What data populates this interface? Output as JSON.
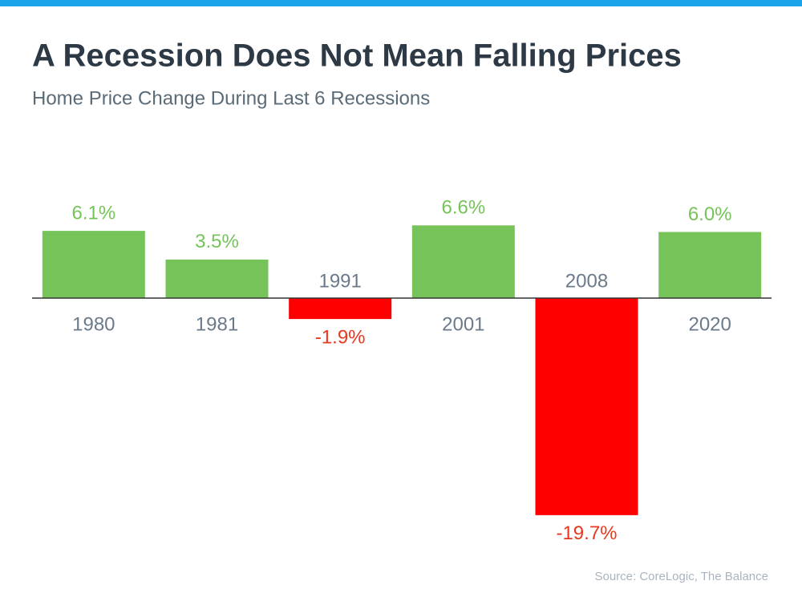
{
  "chart_data": {
    "type": "bar",
    "title": "A Recession Does Not Mean Falling Prices",
    "subtitle": "Home Price Change During Last 6 Recessions",
    "categories": [
      "1980",
      "1981",
      "1991",
      "2001",
      "2008",
      "2020"
    ],
    "values": [
      6.1,
      3.5,
      -1.9,
      6.6,
      -19.7,
      6.0
    ],
    "value_labels": [
      "6.1%",
      "3.5%",
      "-1.9%",
      "6.6%",
      "-19.7%",
      "6.0%"
    ],
    "colors": [
      "#76c35a",
      "#76c35a",
      "#ff0000",
      "#76c35a",
      "#ff0000",
      "#76c35a"
    ],
    "source": "Source: CoreLogic, The Balance"
  }
}
